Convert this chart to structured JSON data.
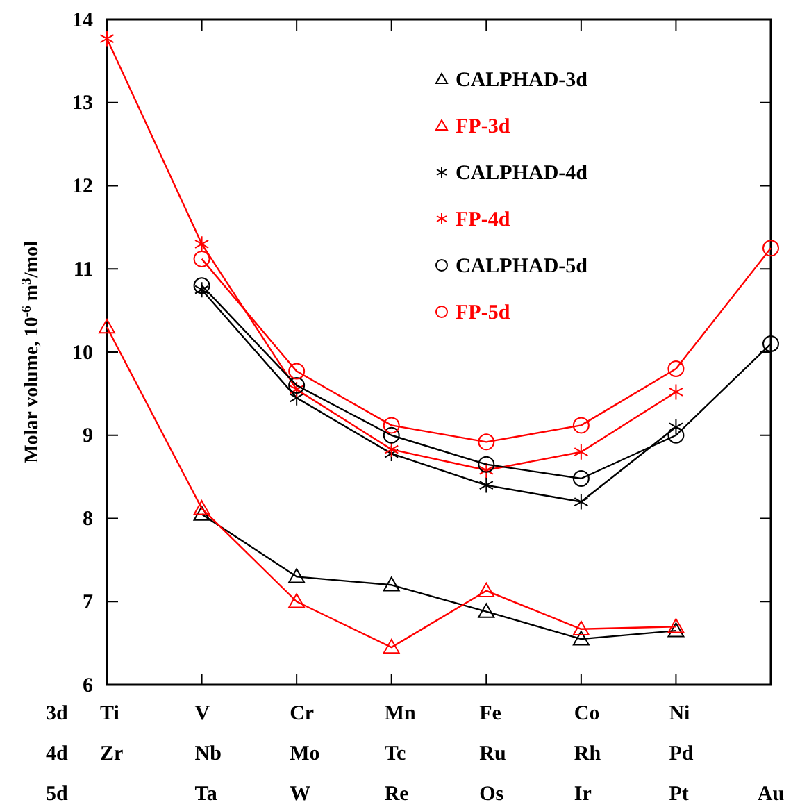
{
  "chart_data": {
    "type": "line",
    "ylabel": "Molar  volume, 10$^{-6}$ m$^{3}$/mol",
    "categories": [
      "Ti\nZr\n",
      "V\nNb\nTa",
      "Cr\nMo\nW",
      "Mn\nTc\nRe",
      "Fe\nRu\nOs",
      "Co\nRh\nIr",
      "Ni\nPd\nPt",
      "\n\nAu"
    ],
    "annotations": [
      "3d",
      "4d",
      "5d"
    ],
    "ylim": [
      6,
      14
    ],
    "yticks": [
      6,
      7,
      8,
      9,
      10,
      11,
      12,
      13,
      14
    ],
    "grid": false,
    "legend": "top right",
    "line_style": "solid",
    "series": [
      {
        "name": "CALPHAD-3d",
        "color": "#000000",
        "marker": "triangle",
        "values": [
          null,
          8.05,
          7.3,
          7.2,
          6.88,
          6.55,
          6.65,
          null
        ]
      },
      {
        "name": "FP-3d",
        "color": "#ff0000",
        "marker": "triangle",
        "values": [
          10.3,
          8.12,
          7.0,
          6.45,
          7.13,
          6.67,
          6.7,
          null
        ]
      },
      {
        "name": "CALPHAD-4d",
        "color": "#000000",
        "marker": "cross",
        "values": [
          null,
          10.75,
          9.45,
          8.78,
          8.4,
          8.2,
          9.1,
          null
        ]
      },
      {
        "name": "FP-4d",
        "color": "#ff0000",
        "marker": "cross",
        "values": [
          13.77,
          11.3,
          9.55,
          8.83,
          8.58,
          8.8,
          9.52,
          null
        ]
      },
      {
        "name": "CALPHAD-5d",
        "color": "#000000",
        "marker": "circle",
        "values": [
          null,
          10.8,
          9.6,
          9.0,
          8.65,
          8.48,
          9.0,
          10.1
        ]
      },
      {
        "name": "FP-5d",
        "color": "#ff0000",
        "marker": "circle",
        "values": [
          null,
          11.12,
          9.77,
          9.12,
          8.92,
          9.12,
          9.8,
          11.25
        ]
      }
    ]
  }
}
